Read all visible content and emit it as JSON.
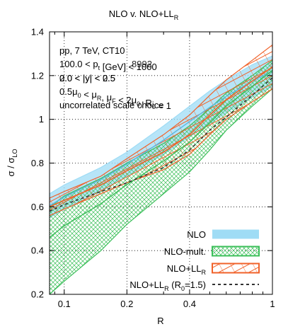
{
  "chart_data": {
    "type": "area",
    "title": "NLO v. NLO+LL_R",
    "title_main": "NLO v. NLO+LL",
    "title_sub": "R",
    "xlabel": "R",
    "ylabel_main": "σ / σ",
    "ylabel_sub": "LO",
    "x_scale": "log",
    "xlim": [
      0.085,
      1.0
    ],
    "ylim": [
      0.2,
      1.4
    ],
    "grid": true,
    "legend_position": "bottom-right",
    "x_ticks": [
      {
        "value": 0.1,
        "label": "0.1"
      },
      {
        "value": 0.2,
        "label": "0.2"
      },
      {
        "value": 0.4,
        "label": "0.4"
      },
      {
        "value": 1.0,
        "label": "1"
      }
    ],
    "y_ticks": [
      {
        "value": 0.2,
        "label": "0.2"
      },
      {
        "value": 0.4,
        "label": "0.4"
      },
      {
        "value": 0.6,
        "label": "0.6"
      },
      {
        "value": 0.8,
        "label": "0.8"
      },
      {
        "value": 1.0,
        "label": "1"
      },
      {
        "value": 1.2,
        "label": "1.2"
      },
      {
        "value": 1.4,
        "label": "1.4"
      }
    ],
    "annotations": [
      {
        "parts": [
          [
            "pp, 7 TeV, CT10",
            ""
          ]
        ]
      },
      {
        "parts": [
          [
            "100.0 < p",
            ""
          ],
          [
            "t",
            "sub"
          ],
          [
            " [GeV] < ",
            ""
          ],
          [
            "8992",
            "ghost"
          ],
          [
            "1000",
            ""
          ]
        ]
      },
      {
        "parts": [
          [
            "0.0 < |y| < 0.5",
            ""
          ],
          [
            "2.0 < |y| < 2.5",
            "ghost"
          ]
        ]
      },
      {
        "parts": [
          [
            "0.5μ",
            ""
          ],
          [
            "0",
            "sub"
          ],
          [
            " < μ",
            ""
          ],
          [
            "R",
            "sub"
          ],
          [
            ", μ",
            ""
          ],
          [
            "F",
            "sub"
          ],
          [
            " < 2μ",
            ""
          ],
          [
            "0",
            "sub"
          ],
          [
            ", R",
            ""
          ],
          [
            "0",
            "sub"
          ],
          [
            " = 1",
            ""
          ]
        ]
      },
      {
        "parts": [
          [
            "uncorrelated scale choice",
            ""
          ]
        ]
      }
    ],
    "series": [
      {
        "name": "NLO",
        "style": "filled band",
        "color": "#9fdcf5",
        "x": [
          0.085,
          0.1,
          0.15,
          0.2,
          0.3,
          0.4,
          0.5,
          0.6,
          0.8,
          1.0
        ],
        "upper": [
          0.66,
          0.7,
          0.78,
          0.85,
          0.97,
          1.06,
          1.13,
          1.18,
          1.25,
          1.29
        ],
        "lower": [
          0.55,
          0.59,
          0.67,
          0.74,
          0.84,
          0.92,
          0.98,
          1.03,
          1.1,
          1.15
        ]
      },
      {
        "name": "NLO-mult.",
        "style": "hatched band",
        "color": "#3cbf5a",
        "x": [
          0.085,
          0.1,
          0.15,
          0.2,
          0.3,
          0.4,
          0.5,
          0.6,
          0.8,
          1.0
        ],
        "upper": [
          0.6,
          0.65,
          0.73,
          0.8,
          0.89,
          0.97,
          1.05,
          1.12,
          1.2,
          1.27
        ],
        "lower": [
          0.2,
          0.26,
          0.4,
          0.52,
          0.66,
          0.76,
          0.86,
          0.95,
          1.06,
          1.14
        ]
      },
      {
        "name": "NLO+LL_R",
        "legend_main": "NLO+LL",
        "legend_sub": "R",
        "style": "hatched band",
        "color": "#f0622a",
        "x": [
          0.085,
          0.1,
          0.15,
          0.2,
          0.3,
          0.4,
          0.5,
          0.6,
          0.8,
          1.0
        ],
        "upper": [
          0.64,
          0.67,
          0.74,
          0.82,
          0.93,
          1.02,
          1.11,
          1.18,
          1.27,
          1.34
        ],
        "lower": [
          0.56,
          0.59,
          0.66,
          0.71,
          0.77,
          0.84,
          0.93,
          1.0,
          1.08,
          1.14
        ]
      },
      {
        "name": "NLO+LL_R (R_0=1.5)",
        "legend_main": "NLO+LL",
        "legend_sub": "R",
        "legend_rest": " (R",
        "legend_sub2": "0",
        "legend_tail": "=1.5)",
        "style": "dashed line",
        "color": "#333333",
        "x": [
          0.085,
          0.1,
          0.15,
          0.2,
          0.3,
          0.4,
          0.5,
          0.6,
          0.8,
          1.0
        ],
        "y": [
          0.58,
          0.61,
          0.67,
          0.71,
          0.78,
          0.86,
          0.95,
          1.01,
          1.11,
          1.19
        ]
      }
    ]
  }
}
